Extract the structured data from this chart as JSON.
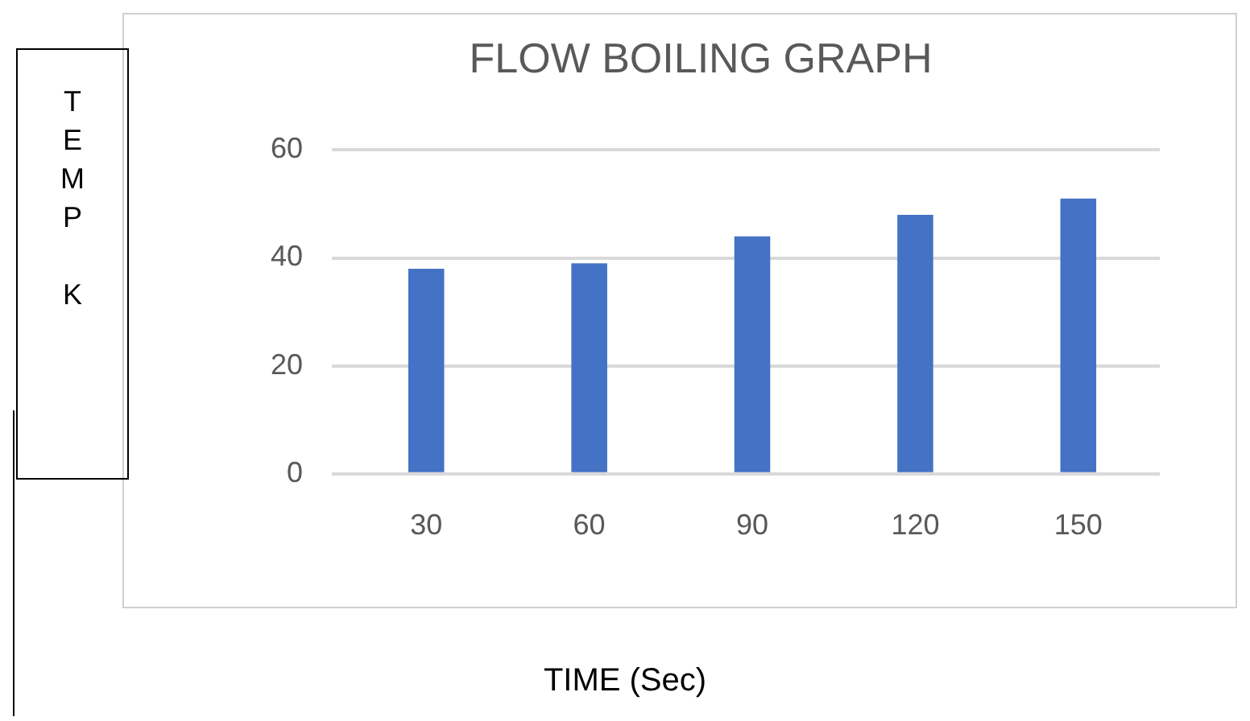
{
  "chart_data": {
    "type": "bar",
    "title": "FLOW BOILING GRAPH",
    "xlabel": "TIME (Sec)",
    "ylabel": "TEMP K",
    "categories": [
      "30",
      "60",
      "90",
      "120",
      "150"
    ],
    "values": [
      38,
      39,
      44,
      48,
      51
    ],
    "color": "#4472c4",
    "ylim": [
      0,
      60
    ],
    "yticks": [
      0,
      20,
      40,
      60
    ],
    "grid": "y"
  }
}
